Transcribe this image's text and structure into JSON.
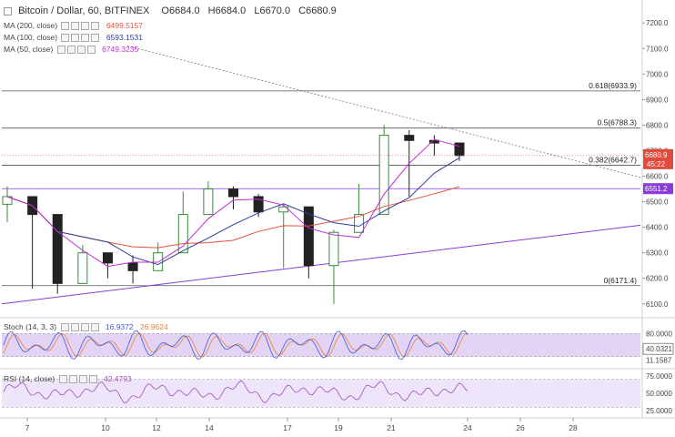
{
  "header": {
    "symbol": "Bitcoin / Dollar, 60, BITFINEX",
    "open": "O6684.0",
    "high": "H6684.0",
    "low": "L6670.0",
    "close": "C6680.9"
  },
  "indicators": [
    {
      "label": "MA (200, close)",
      "value": "6499.5157",
      "color": "#e5533d"
    },
    {
      "label": "MA (100, close)",
      "value": "6593.1531",
      "color": "#2f3d9c"
    },
    {
      "label": "MA (50, close)",
      "value": "6749.3235",
      "color": "#c02fd0"
    }
  ],
  "stoch": {
    "label": "Stoch (14, 3, 3)",
    "k": "16.9372",
    "d": "26.9624",
    "k_color": "#3b5bdb",
    "d_color": "#f08030"
  },
  "rsi": {
    "label": "RSI (14, close)",
    "value": "42.4793",
    "color": "#a050c0"
  },
  "price_axis": {
    "ticks": [
      "7200.0",
      "7100.0",
      "7000.0",
      "6900.0",
      "6800.0",
      "6700.0",
      "6600.0",
      "6500.0",
      "6400.0",
      "6300.0",
      "6200.0",
      "6100.0"
    ],
    "current_price": "6680.9",
    "countdown": "45:22",
    "purple_level": "6551.2"
  },
  "stoch_axis": {
    "ticks": [
      "80.0000",
      "40.0321",
      "11.1587"
    ]
  },
  "rsi_axis": {
    "ticks": [
      "75.0000",
      "50.0000",
      "25.0000"
    ]
  },
  "x_axis": {
    "ticks": [
      "7",
      "10",
      "12",
      "14",
      "17",
      "19",
      "21",
      "24",
      "26",
      "28"
    ]
  },
  "fib_levels": [
    {
      "label": "0.618(6933.9)",
      "value": 6933.9
    },
    {
      "label": "0.5(6788.3)",
      "value": 6788.3
    },
    {
      "label": "0.382(6642.7)",
      "value": 6642.7
    },
    {
      "label": "0(6171.4)",
      "value": 6171.4
    }
  ],
  "colors": {
    "up": "#3a8a3a",
    "down": "#222222",
    "fib": "#555555",
    "trend_purple": "#8b3bd9",
    "stoch_fill": "#e3d3f5",
    "rsi_fill": "#efe5fa",
    "price_badge": "#e24a3b",
    "level_badge": "#8b3bd9"
  },
  "chart_data": {
    "type": "candlestick",
    "x": [
      "6",
      "7",
      "8",
      "9",
      "10",
      "11",
      "12",
      "13",
      "14",
      "15",
      "16",
      "17",
      "18",
      "19",
      "20",
      "21",
      "22",
      "23",
      "24"
    ],
    "close": [
      6520,
      6450,
      6180,
      6300,
      6260,
      6230,
      6300,
      6450,
      6550,
      6520,
      6460,
      6480,
      6250,
      6380,
      6450,
      6760,
      6740,
      6730,
      6681
    ],
    "high": [
      6560,
      6500,
      6320,
      6330,
      6300,
      6290,
      6340,
      6540,
      6580,
      6560,
      6530,
      6490,
      6330,
      6390,
      6570,
      6800,
      6780,
      6760,
      6710
    ],
    "low": [
      6420,
      6160,
      6140,
      6210,
      6200,
      6180,
      6230,
      6380,
      6480,
      6470,
      6440,
      6240,
      6200,
      6100,
      6400,
      6580,
      6520,
      6680,
      6660
    ],
    "ylim": [
      6060,
      7240
    ]
  }
}
